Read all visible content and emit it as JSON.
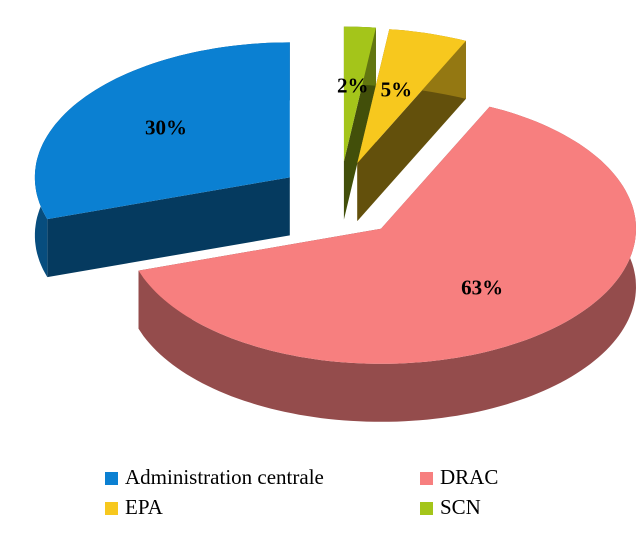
{
  "chart_data": {
    "type": "pie",
    "categories": [
      "Administration centrale",
      "DRAC",
      "EPA",
      "SCN"
    ],
    "values": [
      30,
      63,
      5,
      2
    ],
    "value_labels": [
      "30%",
      "63%",
      "5%",
      "2%"
    ],
    "colors": [
      "#0b80d2",
      "#f77f7f",
      "#f7c81e",
      "#a4c51a"
    ],
    "legend": "bottom"
  }
}
